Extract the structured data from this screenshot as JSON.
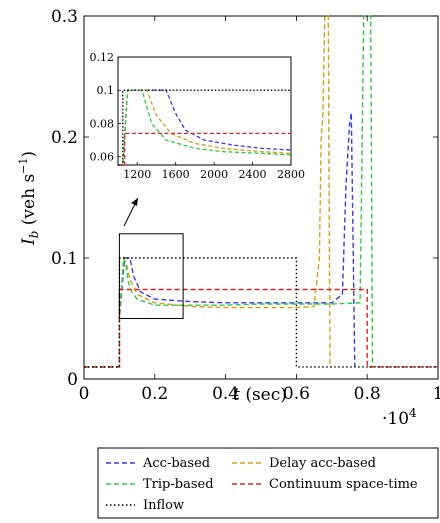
{
  "chart_data": {
    "type": "line",
    "xlabel": "t (sec)",
    "ylabel": "I_b (veh s^-1)",
    "x_multiplier": "·10^4",
    "xlim": [
      0,
      1
    ],
    "ylim": [
      0,
      0.3
    ],
    "xticks": [
      0,
      0.2,
      0.4,
      0.6,
      0.8,
      1
    ],
    "xtick_labels": [
      "0",
      "0.2",
      "0.4",
      "0.6",
      "0.8",
      "1"
    ],
    "yticks": [
      0,
      0.1,
      0.2,
      0.3
    ],
    "ytick_labels": [
      "0",
      "0.1",
      "0.2",
      "0.3"
    ],
    "legend_position": "below",
    "legend_entries": [
      "Acc-based",
      "Delay acc-based",
      "Trip-based",
      "Continuum space-time",
      "Inflow"
    ],
    "series": [
      {
        "name": "Acc-based",
        "color": "#3a3ae6",
        "dash": "dashed",
        "x": [
          0,
          0.1,
          0.1,
          0.115,
          0.123,
          0.13,
          0.14,
          0.16,
          0.2,
          0.3,
          0.4,
          0.5,
          0.6,
          0.7,
          0.73,
          0.74,
          0.75,
          0.755,
          0.765
        ],
        "y": [
          0.01,
          0.01,
          0.05,
          0.1,
          0.1,
          0.1,
          0.085,
          0.072,
          0.066,
          0.064,
          0.063,
          0.063,
          0.063,
          0.063,
          0.07,
          0.16,
          0.21,
          0.22,
          0.01
        ]
      },
      {
        "name": "Delay acc-based",
        "color": "#d4a017",
        "dash": "dashed",
        "x": [
          0,
          0.1,
          0.1,
          0.112,
          0.12,
          0.13,
          0.15,
          0.2,
          0.3,
          0.4,
          0.5,
          0.6,
          0.65,
          0.665,
          0.67,
          0.675,
          0.68,
          0.685,
          0.69,
          0.695,
          0.7
        ],
        "y": [
          0.01,
          0.01,
          0.05,
          0.1,
          0.095,
          0.082,
          0.07,
          0.063,
          0.06,
          0.059,
          0.059,
          0.059,
          0.06,
          0.1,
          0.2,
          0.22,
          0.3,
          0.3,
          0.3,
          0.01,
          0.01
        ]
      },
      {
        "name": "Trip-based",
        "color": "#2ecc40",
        "dash": "dashed",
        "x": [
          0,
          0.1,
          0.1,
          0.112,
          0.118,
          0.125,
          0.135,
          0.15,
          0.2,
          0.3,
          0.4,
          0.5,
          0.6,
          0.7,
          0.78,
          0.79,
          0.8,
          0.81,
          0.815
        ],
        "y": [
          0.01,
          0.01,
          0.05,
          0.1,
          0.095,
          0.08,
          0.072,
          0.066,
          0.061,
          0.061,
          0.061,
          0.062,
          0.062,
          0.062,
          0.063,
          0.3,
          0.3,
          0.3,
          0.01
        ]
      },
      {
        "name": "Continuum space-time",
        "color": "#d62728",
        "dash": "dashed",
        "x": [
          0,
          0.1,
          0.1,
          0.115,
          0.13,
          0.8,
          0.8,
          1
        ],
        "y": [
          0.01,
          0.01,
          0.074,
          0.074,
          0.074,
          0.074,
          0.01,
          0.01
        ]
      },
      {
        "name": "Inflow",
        "color": "#000000",
        "dash": "dotted",
        "x": [
          0,
          0.1,
          0.1,
          0.6,
          0.6,
          1
        ],
        "y": [
          0.01,
          0.01,
          0.1,
          0.1,
          0.01,
          0.01
        ]
      }
    ],
    "inset": {
      "xlim": [
        1000,
        2800
      ],
      "ylim": [
        0.055,
        0.12
      ],
      "xticks": [
        1200,
        1600,
        2000,
        2400,
        2800
      ],
      "xtick_labels": [
        "1200",
        "1600",
        "2000",
        "2400",
        "2800"
      ],
      "yticks": [
        0.06,
        0.08,
        0.1,
        0.12
      ],
      "ytick_labels": [
        "0.06",
        "0.08",
        "0.1",
        "0.12"
      ],
      "zoom_region": {
        "x": [
          1000,
          2800
        ],
        "y": [
          0.05,
          0.12
        ]
      },
      "series": [
        {
          "name": "Acc-based",
          "x": [
            1000,
            1050,
            1100,
            1150,
            1500,
            1600,
            1700,
            1900,
            2200,
            2500,
            2800
          ],
          "y": [
            0.055,
            0.055,
            0.1,
            0.1,
            0.1,
            0.086,
            0.076,
            0.07,
            0.067,
            0.065,
            0.064
          ]
        },
        {
          "name": "Delay acc-based",
          "x": [
            1000,
            1050,
            1100,
            1150,
            1300,
            1400,
            1550,
            1800,
            2100,
            2500,
            2800
          ],
          "y": [
            0.055,
            0.055,
            0.1,
            0.1,
            0.1,
            0.085,
            0.074,
            0.068,
            0.065,
            0.063,
            0.062
          ]
        },
        {
          "name": "Trip-based",
          "x": [
            1000,
            1050,
            1100,
            1150,
            1250,
            1350,
            1500,
            1800,
            2100,
            2500,
            2800
          ],
          "y": [
            0.055,
            0.055,
            0.1,
            0.1,
            0.1,
            0.08,
            0.07,
            0.065,
            0.063,
            0.062,
            0.061
          ]
        },
        {
          "name": "Continuum space-time",
          "x": [
            1000,
            1070,
            1070,
            1150,
            2800
          ],
          "y": [
            0.055,
            0.055,
            0.074,
            0.074,
            0.074
          ]
        },
        {
          "name": "Inflow",
          "x": [
            1000,
            1050,
            1050,
            2800
          ],
          "y": [
            0.055,
            0.055,
            0.1,
            0.1
          ]
        }
      ]
    }
  }
}
